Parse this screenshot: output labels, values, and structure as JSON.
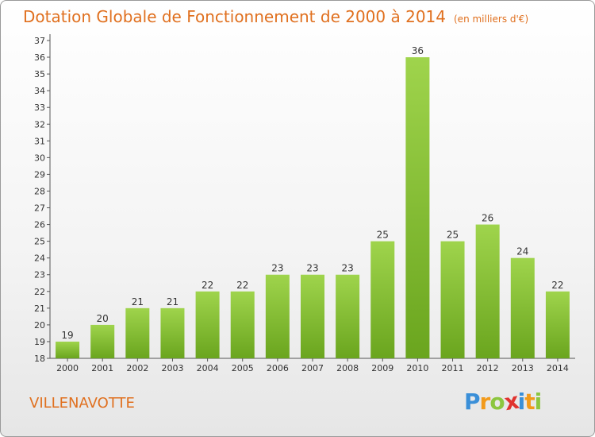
{
  "chart_data": {
    "type": "bar",
    "title": "Dotation Globale de Fonctionnement de 2000 à 2014",
    "subtitle": "(en milliers d'€)",
    "categories": [
      "2000",
      "2001",
      "2002",
      "2003",
      "2004",
      "2005",
      "2006",
      "2007",
      "2008",
      "2009",
      "2010",
      "2011",
      "2012",
      "2013",
      "2014"
    ],
    "values": [
      19,
      20,
      21,
      21,
      22,
      22,
      23,
      23,
      23,
      25,
      36,
      25,
      26,
      24,
      22
    ],
    "ylim": [
      18,
      37
    ],
    "yticks": [
      "18",
      "19",
      "20",
      "21",
      "22",
      "23",
      "24",
      "25",
      "26",
      "27",
      "28",
      "29",
      "30",
      "31",
      "32",
      "33",
      "34",
      "35",
      "36",
      "37"
    ],
    "grid": false,
    "bar_color": "#8cc63f"
  },
  "commune": "VILLENAVOTTE",
  "logo": {
    "letters": [
      "P",
      "r",
      "o",
      "x",
      "i",
      "t",
      "i"
    ],
    "colors": [
      "#3a8fd8",
      "#f29a1a",
      "#8cc63f",
      "#e0332f",
      "#3a8fd8",
      "#f29a1a",
      "#8cc63f"
    ]
  }
}
